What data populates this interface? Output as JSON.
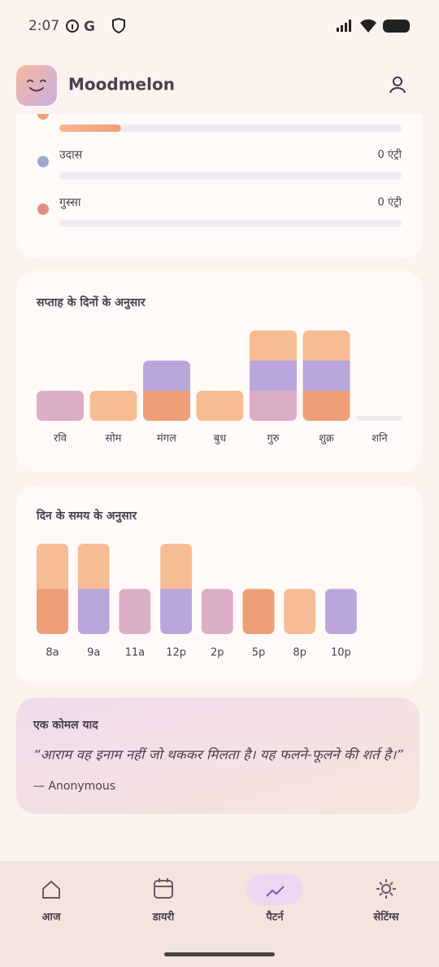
{
  "status_bar": {
    "time": "2:07"
  },
  "header": {
    "title": "Moodmelon"
  },
  "mood_list": {
    "rows": [
      {
        "color": "#f0a07a",
        "share": 0.18
      },
      {
        "label": "उदास",
        "count_label": "0 एंट्री",
        "color": "#9fa8cc",
        "share": 0
      },
      {
        "label": "गुस्सा",
        "count_label": "0 एंट्री",
        "color": "#e08f86",
        "share": 0
      }
    ]
  },
  "weekday_chart": {
    "type": "bar",
    "stacked": true,
    "title": "सप्ताह के दिनों के अनुसार",
    "categories": [
      "रवि",
      "सोम",
      "मंगल",
      "बुध",
      "गुरु",
      "शुक्र",
      "शनि"
    ],
    "ylim": [
      0,
      3
    ],
    "series": [
      {
        "color": "#ee9f78",
        "values": [
          0,
          0,
          1,
          0,
          0,
          1,
          0
        ]
      },
      {
        "color": "#dcaec6",
        "values": [
          1,
          0,
          0,
          0,
          1,
          0,
          0
        ]
      },
      {
        "color": "#bba6dc",
        "values": [
          0,
          0,
          1,
          0,
          1,
          1,
          0
        ]
      },
      {
        "color": "#f6bc94",
        "values": [
          0,
          1,
          0,
          1,
          1,
          1,
          0
        ]
      }
    ]
  },
  "time_chart": {
    "type": "bar",
    "stacked": true,
    "title": "दिन के समय के अनुसार",
    "categories": [
      "8a",
      "9a",
      "11a",
      "12p",
      "2p",
      "5p",
      "8p",
      "10p"
    ],
    "ylim": [
      0,
      2
    ],
    "series": [
      {
        "color": "#ee9f78",
        "values": [
          1,
          0,
          0,
          0,
          0,
          1,
          0,
          0
        ]
      },
      {
        "color": "#dcaec6",
        "values": [
          0,
          0,
          1,
          0,
          1,
          0,
          0,
          0
        ]
      },
      {
        "color": "#bba6dc",
        "values": [
          0,
          1,
          0,
          1,
          0,
          0,
          0,
          1
        ]
      },
      {
        "color": "#f6bc94",
        "values": [
          1,
          1,
          0,
          1,
          0,
          0,
          1,
          0
        ]
      }
    ]
  },
  "quote_card": {
    "label": "एक कोमल याद",
    "quote": "“आराम वह इनाम नहीं जो थककर मिलता है। यह फलने-फूलने की शर्त है।”",
    "author": "— Anonymous"
  },
  "nav": {
    "items": [
      "आज",
      "डायरी",
      "पैटर्न",
      "सेटिंग्स"
    ],
    "active": 2
  }
}
